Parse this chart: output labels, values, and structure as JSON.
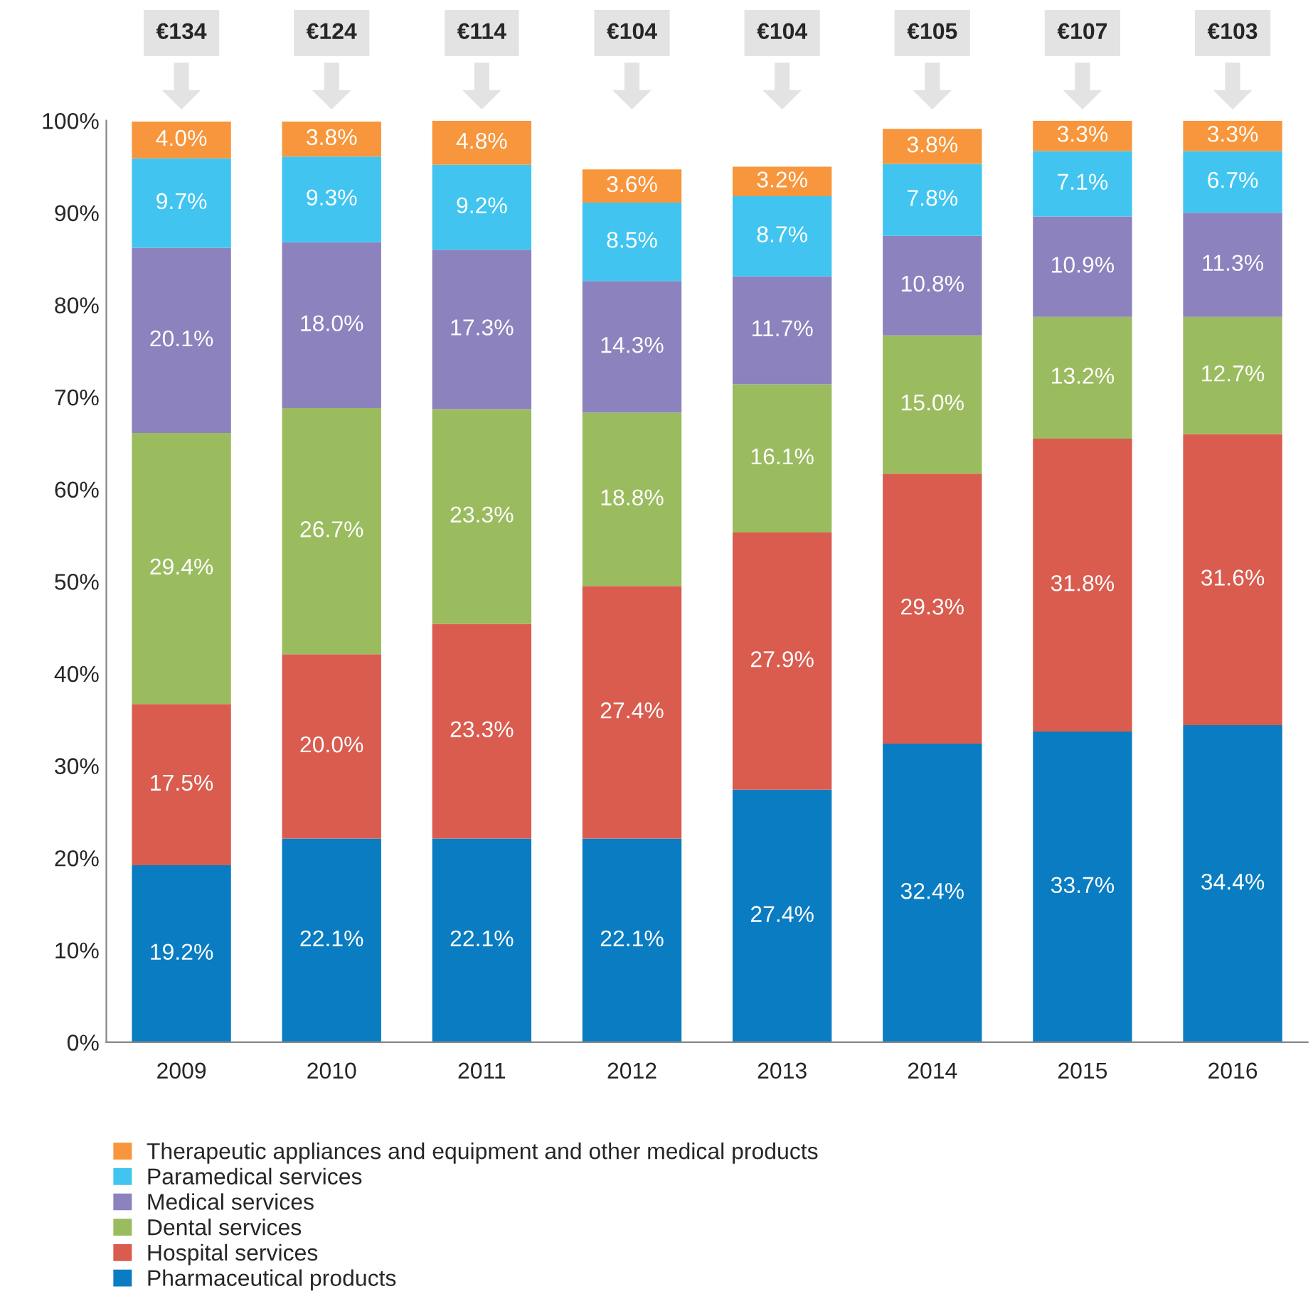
{
  "chart_data": {
    "type": "bar",
    "stacked": true,
    "legend": "bottom",
    "grid": false,
    "categories": [
      "2009",
      "2010",
      "2011",
      "2012",
      "2013",
      "2014",
      "2015",
      "2016"
    ],
    "ylim": [
      0,
      100
    ],
    "yticks": [
      {
        "value": 0,
        "label": "0%"
      },
      {
        "value": 10,
        "label": "10%"
      },
      {
        "value": 20,
        "label": "20%"
      },
      {
        "value": 30,
        "label": "30%"
      },
      {
        "value": 40,
        "label": "40%"
      },
      {
        "value": 50,
        "label": "50%"
      },
      {
        "value": 60,
        "label": "60%"
      },
      {
        "value": 70,
        "label": "70%"
      },
      {
        "value": 80,
        "label": "80%"
      },
      {
        "value": 90,
        "label": "90%"
      },
      {
        "value": 100,
        "label": "100%"
      }
    ],
    "series": [
      {
        "name": "Pharmaceutical products",
        "color": "#0a7dc2",
        "values": [
          19.2,
          22.1,
          22.1,
          22.1,
          27.4,
          32.4,
          33.7,
          34.4
        ],
        "value_labels": [
          "19.2%",
          "22.1%",
          "22.1%",
          "22.1%",
          "27.4%",
          "32.4%",
          "33.7%",
          "34.4%"
        ]
      },
      {
        "name": "Hospital services",
        "color": "#d95c4f",
        "values": [
          17.5,
          20.0,
          23.3,
          27.4,
          27.9,
          29.3,
          31.8,
          31.6
        ],
        "value_labels": [
          "17.5%",
          "20.0%",
          "23.3%",
          "27.4%",
          "27.9%",
          "29.3%",
          "31.8%",
          "31.6%"
        ]
      },
      {
        "name": "Dental services",
        "color": "#9bbb5f",
        "values": [
          29.4,
          26.7,
          23.3,
          18.8,
          16.1,
          15.0,
          13.2,
          12.7
        ],
        "value_labels": [
          "29.4%",
          "26.7%",
          "23.3%",
          "18.8%",
          "16.1%",
          "15.0%",
          "13.2%",
          "12.7%"
        ]
      },
      {
        "name": "Medical services",
        "color": "#8c82bd",
        "values": [
          20.1,
          18.0,
          17.3,
          14.3,
          11.7,
          10.8,
          10.9,
          11.3
        ],
        "value_labels": [
          "20.1%",
          "18.0%",
          "17.3%",
          "14.3%",
          "11.7%",
          "10.8%",
          "10.9%",
          "11.3%"
        ]
      },
      {
        "name": "Paramedical services",
        "color": "#41c5f0",
        "values": [
          9.7,
          9.3,
          9.2,
          8.5,
          8.7,
          7.8,
          7.1,
          6.7
        ],
        "value_labels": [
          "9.7%",
          "9.3%",
          "9.2%",
          "8.5%",
          "8.7%",
          "7.8%",
          "7.1%",
          "6.7%"
        ]
      },
      {
        "name": "Therapeutic appliances and equipment and other medical products",
        "color": "#f7963c",
        "values": [
          4.0,
          3.8,
          4.8,
          3.6,
          3.2,
          3.8,
          3.3,
          3.3
        ],
        "value_labels": [
          "4.0%",
          "3.8%",
          "4.8%",
          "3.6%",
          "3.2%",
          "3.8%",
          "3.3%",
          "3.3%"
        ]
      }
    ],
    "annotations": [
      "€134",
      "€124",
      "€114",
      "€104",
      "€104",
      "€105",
      "€107",
      "€103"
    ]
  }
}
